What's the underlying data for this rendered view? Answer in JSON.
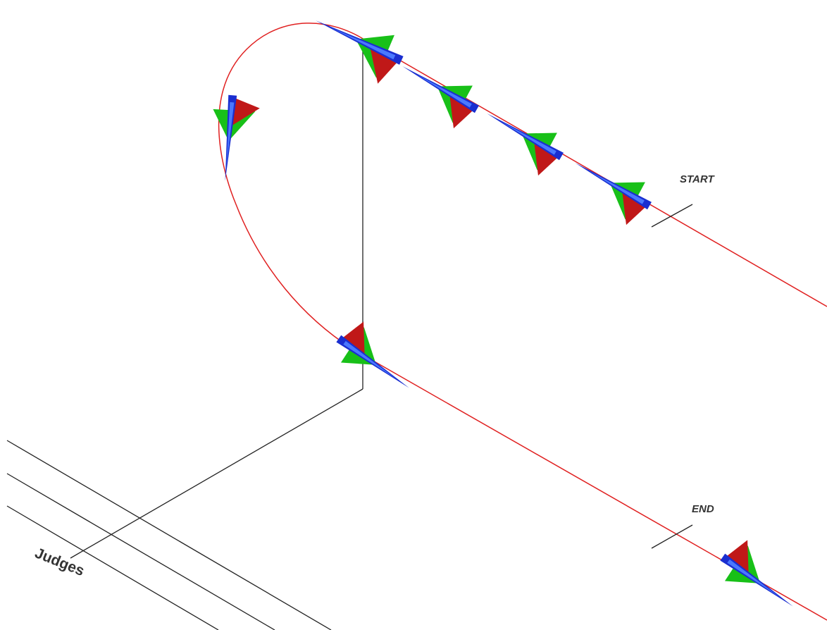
{
  "markers": [
    {
      "label": "START"
    },
    {
      "label": "END"
    }
  ],
  "judges": {
    "label": "Judges"
  }
}
